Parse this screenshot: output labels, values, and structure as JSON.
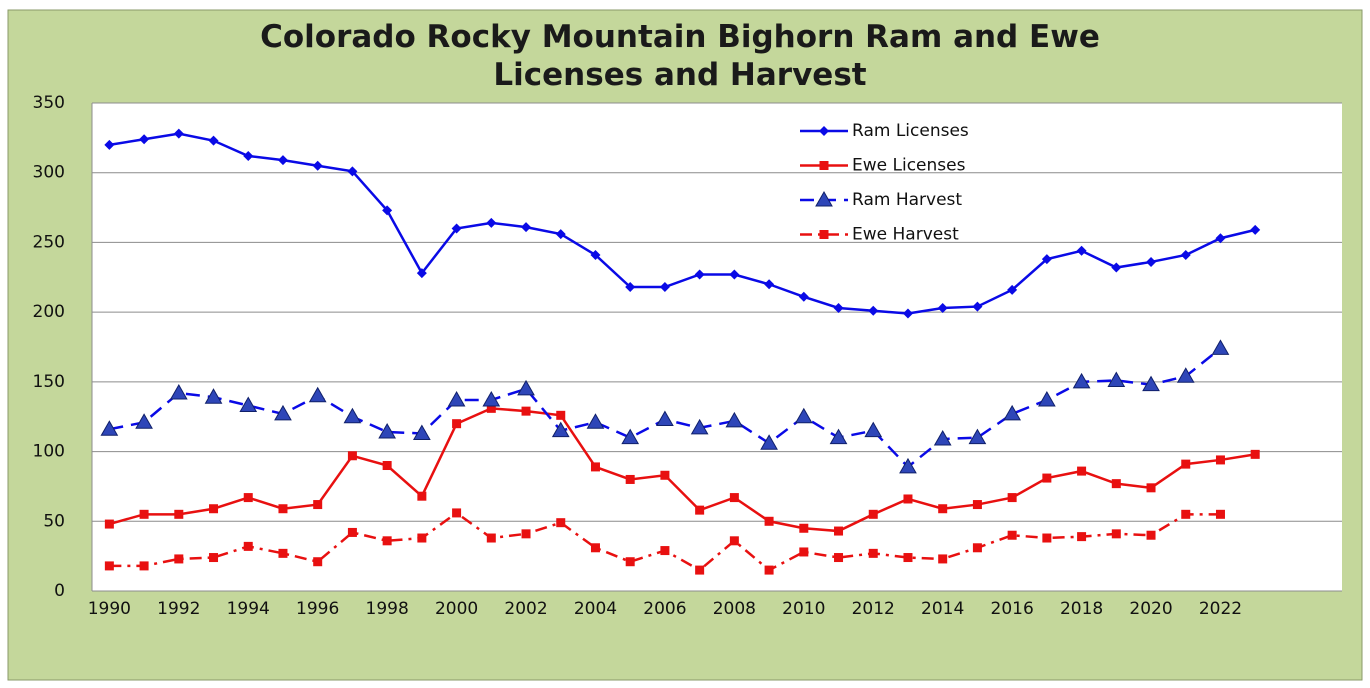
{
  "chart_data": {
    "type": "line",
    "title": "Colorado Rocky Mountain Bighorn Ram and Ewe Licenses and Harvest",
    "x": [
      1990,
      1991,
      1992,
      1993,
      1994,
      1995,
      1996,
      1997,
      1998,
      1999,
      2000,
      2001,
      2002,
      2003,
      2004,
      2005,
      2006,
      2007,
      2008,
      2009,
      2010,
      2011,
      2012,
      2013,
      2014,
      2015,
      2016,
      2017,
      2018,
      2019,
      2020,
      2021,
      2022,
      2023
    ],
    "xlim": [
      1989.5,
      2025.5
    ],
    "xticks": [
      1990,
      1992,
      1994,
      1996,
      1998,
      2000,
      2002,
      2004,
      2006,
      2008,
      2010,
      2012,
      2014,
      2016,
      2018,
      2020,
      2022
    ],
    "ylim": [
      0,
      350
    ],
    "yticks": [
      0,
      50,
      100,
      150,
      200,
      250,
      300,
      350
    ],
    "grid": true,
    "legend": "top-right",
    "series": [
      {
        "name": "Ram Licenses",
        "color": "#0a0ae6",
        "marker": "diamond",
        "dash": "solid",
        "values": [
          320,
          324,
          328,
          323,
          312,
          309,
          305,
          301,
          273,
          228,
          260,
          264,
          261,
          256,
          241,
          218,
          218,
          227,
          227,
          220,
          211,
          203,
          201,
          199,
          203,
          204,
          216,
          238,
          244,
          232,
          236,
          241,
          253,
          259
        ]
      },
      {
        "name": "Ewe Licenses",
        "color": "#e81010",
        "marker": "square",
        "dash": "solid",
        "values": [
          48,
          55,
          55,
          59,
          67,
          59,
          62,
          97,
          90,
          68,
          120,
          131,
          129,
          126,
          89,
          80,
          83,
          58,
          67,
          50,
          45,
          43,
          55,
          66,
          59,
          62,
          67,
          81,
          86,
          77,
          74,
          91,
          94,
          98
        ]
      },
      {
        "name": "Ram Harvest",
        "color": "#0a0ae6",
        "marker": "triangle",
        "dash": "dashed",
        "values": [
          116,
          121,
          142,
          139,
          133,
          127,
          140,
          125,
          114,
          113,
          137,
          137,
          145,
          115,
          121,
          110,
          123,
          117,
          122,
          106,
          125,
          110,
          115,
          89,
          109,
          110,
          127,
          137,
          150,
          151,
          148,
          154,
          174,
          null
        ]
      },
      {
        "name": "Ewe Harvest",
        "color": "#e81010",
        "marker": "square",
        "dash": "dashdot",
        "values": [
          18,
          18,
          23,
          24,
          32,
          27,
          21,
          42,
          36,
          38,
          56,
          38,
          41,
          49,
          31,
          21,
          29,
          15,
          36,
          15,
          28,
          24,
          27,
          24,
          23,
          31,
          40,
          38,
          39,
          41,
          40,
          55,
          55,
          null
        ]
      }
    ]
  }
}
